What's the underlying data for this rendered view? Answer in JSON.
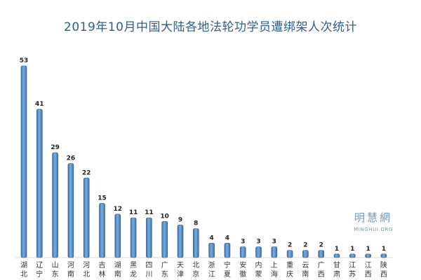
{
  "chart_data": {
    "type": "bar",
    "title": "2019年10月中国大陆各地法轮功学员遭绑架人次统计",
    "xlabel": "",
    "ylabel": "",
    "ylim": [
      0,
      56
    ],
    "grid": false,
    "categories": [
      "湖北",
      "辽宁",
      "山东",
      "河南",
      "河北",
      "吉林",
      "湖南",
      "黑龙",
      "四川",
      "广东",
      "天津",
      "北京",
      "浙江",
      "宁夏",
      "安徽",
      "内蒙",
      "上海",
      "重庆",
      "云南",
      "广西",
      "甘肃",
      "江苏",
      "江西",
      "陕西"
    ],
    "values": [
      53,
      41,
      29,
      26,
      22,
      15,
      12,
      11,
      11,
      10,
      9,
      8,
      4,
      4,
      3,
      3,
      3,
      2,
      2,
      2,
      1,
      1,
      1,
      1
    ],
    "bar_color": "#4f86c6",
    "bar_edge_color": "#2f5f96"
  },
  "watermark": {
    "logo": "明慧網",
    "site": "MINGHUI.ORG"
  }
}
